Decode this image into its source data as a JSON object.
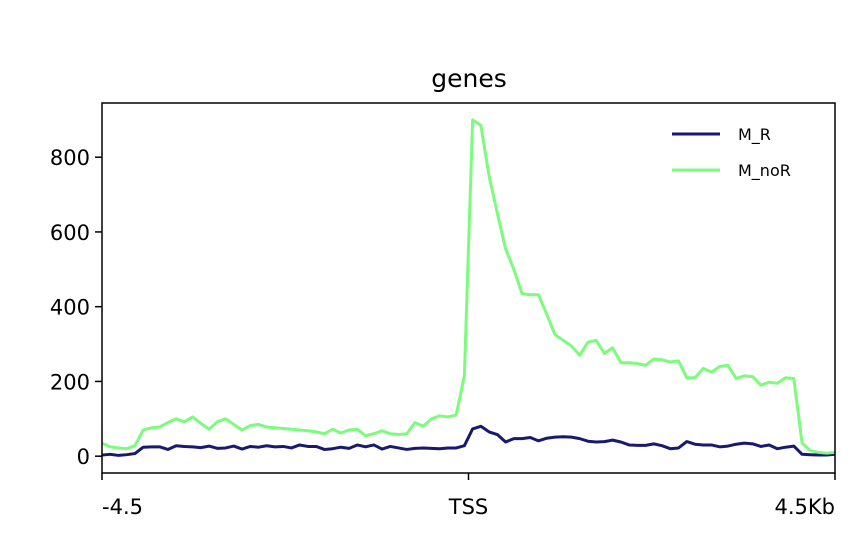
{
  "chart_data": {
    "type": "line",
    "title": "genes",
    "xlabel": "",
    "ylabel": "",
    "x_ticks": [
      "-4.5",
      "TSS",
      "4.5Kb"
    ],
    "y_ticks": [
      "0",
      "200",
      "400",
      "600",
      "800"
    ],
    "y_tick_values": [
      0,
      200,
      400,
      600,
      800
    ],
    "xlim": [
      -4.5,
      4.5
    ],
    "ylim": [
      -45,
      945
    ],
    "grid": false,
    "legend_position": "top-right",
    "series": [
      {
        "name": "M_R",
        "color": "#191970",
        "values": [
          3,
          5,
          2,
          4,
          7,
          24,
          25,
          25,
          18,
          28,
          26,
          25,
          23,
          27,
          21,
          22,
          27,
          19,
          26,
          24,
          28,
          25,
          26,
          22,
          30,
          26,
          26,
          18,
          20,
          24,
          21,
          30,
          25,
          30,
          19,
          26,
          22,
          18,
          21,
          22,
          21,
          20,
          22,
          22,
          28,
          73,
          80,
          65,
          58,
          38,
          47,
          47,
          50,
          41,
          48,
          51,
          52,
          51,
          47,
          40,
          38,
          39,
          43,
          38,
          30,
          29,
          29,
          33,
          28,
          20,
          22,
          39,
          32,
          30,
          30,
          25,
          27,
          32,
          35,
          33,
          26,
          30,
          20,
          24,
          27,
          5,
          4,
          3,
          3,
          5
        ]
      },
      {
        "name": "M_noR",
        "color": "#7cfc7c",
        "values": [
          35,
          25,
          22,
          20,
          28,
          70,
          76,
          78,
          90,
          100,
          92,
          105,
          88,
          72,
          92,
          100,
          85,
          70,
          82,
          85,
          78,
          76,
          74,
          72,
          70,
          68,
          65,
          60,
          72,
          62,
          70,
          72,
          55,
          60,
          68,
          60,
          58,
          60,
          90,
          80,
          100,
          108,
          105,
          110,
          215,
          900,
          885,
          750,
          650,
          555,
          500,
          435,
          432,
          432,
          380,
          325,
          310,
          295,
          270,
          305,
          310,
          275,
          290,
          250,
          250,
          248,
          243,
          260,
          258,
          252,
          255,
          210,
          210,
          235,
          225,
          240,
          243,
          208,
          215,
          213,
          190,
          198,
          195,
          210,
          208,
          35,
          15,
          10,
          8,
          10
        ]
      }
    ]
  }
}
